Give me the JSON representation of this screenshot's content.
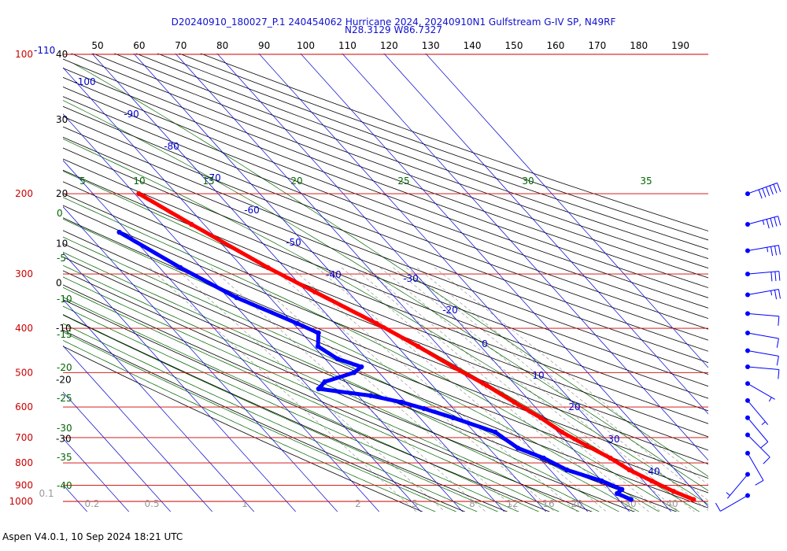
{
  "header": {
    "title_line1": "D20240910_180027_P.1 240454062 Hurricane 2024, 20240910N1 Gulfstream G-IV SP, N49RF",
    "title_line2": "N28.3129 W86.7327"
  },
  "footer": {
    "text": "Aspen V4.0.1, 10 Sep 2024  18:21 UTC"
  },
  "colors": {
    "temperature": "#ff0000",
    "dewpoint": "#0000ff",
    "isobar": "#cc0000",
    "isotherm": "#0000cc",
    "dry_adiabat": "#000000",
    "moist_adiabat": "#006600",
    "mixing_ratio": "#999999",
    "wind_barb": "#0000ff"
  },
  "chart_data": {
    "type": "skew-t",
    "pressure_axis": {
      "labels": [
        "100",
        "200",
        "300",
        "400",
        "500",
        "600",
        "700",
        "800",
        "900",
        "1000"
      ],
      "values": [
        100,
        200,
        300,
        400,
        500,
        600,
        700,
        800,
        900,
        1000
      ],
      "top_extra_label": "-110"
    },
    "isobar_pressures": [
      100,
      205,
      310,
      410,
      515,
      615,
      720,
      820,
      920,
      1000
    ],
    "altitude_labels": [
      {
        "label": "40",
        "p": 100
      },
      {
        "label": "30",
        "p": 140
      },
      {
        "label": "20",
        "p": 205
      },
      {
        "label": "10",
        "p": 265
      },
      {
        "label": "0",
        "p": 325
      },
      {
        "label": "-10",
        "p": 410
      },
      {
        "label": "-20",
        "p": 535
      },
      {
        "label": "-30",
        "p": 725
      }
    ],
    "top_scale_labels": [
      "50",
      "60",
      "70",
      "80",
      "90",
      "100",
      "110",
      "120",
      "130",
      "140",
      "150",
      "160",
      "170",
      "180",
      "190"
    ],
    "isotherm_labels": [
      {
        "label": "-100",
        "t": -100
      },
      {
        "label": "-90",
        "t": -90
      },
      {
        "label": "-80",
        "t": -80
      },
      {
        "label": "-70",
        "t": -70
      },
      {
        "label": "-60",
        "t": -60
      },
      {
        "label": "-50",
        "t": -50
      },
      {
        "label": "-40",
        "t": -40
      },
      {
        "label": "-30",
        "t": -30
      },
      {
        "label": "-20",
        "t": -20
      },
      {
        "label": "0",
        "t": 0
      },
      {
        "label": "10",
        "t": 10
      },
      {
        "label": "20",
        "t": 20
      },
      {
        "label": "30",
        "t": 30
      },
      {
        "label": "40",
        "t": 40
      }
    ],
    "moist_adiabat_labels": [
      "5",
      "10",
      "15",
      "20",
      "25",
      "30",
      "35"
    ],
    "theta_w_left_labels": [
      "0",
      "-5",
      "-10",
      "-15",
      "-20",
      "-25",
      "-30",
      "-35",
      "-40"
    ],
    "mixing_ratio_labels": [
      "0.1",
      "0.2",
      "0.5",
      "1",
      "2",
      "5",
      "8",
      "12",
      "16",
      "20",
      "30",
      "40"
    ],
    "temperature_profile": [
      {
        "p": 205,
        "t": -39
      },
      {
        "p": 240,
        "t": -33
      },
      {
        "p": 300,
        "t": -24
      },
      {
        "p": 340,
        "t": -18
      },
      {
        "p": 400,
        "t": -10
      },
      {
        "p": 450,
        "t": -5
      },
      {
        "p": 500,
        "t": -1
      },
      {
        "p": 550,
        "t": 3
      },
      {
        "p": 600,
        "t": 6
      },
      {
        "p": 650,
        "t": 9
      },
      {
        "p": 700,
        "t": 11
      },
      {
        "p": 750,
        "t": 14
      },
      {
        "p": 800,
        "t": 17
      },
      {
        "p": 850,
        "t": 19
      },
      {
        "p": 900,
        "t": 22
      },
      {
        "p": 950,
        "t": 25
      },
      {
        "p": 990,
        "t": 28
      }
    ],
    "dewpoint_profile": [
      {
        "p": 250,
        "t": -52
      },
      {
        "p": 300,
        "t": -45
      },
      {
        "p": 350,
        "t": -38
      },
      {
        "p": 400,
        "t": -29
      },
      {
        "p": 420,
        "t": -26
      },
      {
        "p": 450,
        "t": -29
      },
      {
        "p": 480,
        "t": -27
      },
      {
        "p": 500,
        "t": -23
      },
      {
        "p": 515,
        "t": -26
      },
      {
        "p": 540,
        "t": -35
      },
      {
        "p": 560,
        "t": -38
      },
      {
        "p": 580,
        "t": -27
      },
      {
        "p": 600,
        "t": -21
      },
      {
        "p": 620,
        "t": -17
      },
      {
        "p": 650,
        "t": -12
      },
      {
        "p": 700,
        "t": -5
      },
      {
        "p": 760,
        "t": -3
      },
      {
        "p": 800,
        "t": 1
      },
      {
        "p": 850,
        "t": 4
      },
      {
        "p": 900,
        "t": 10
      },
      {
        "p": 940,
        "t": 13
      },
      {
        "p": 960,
        "t": 11
      },
      {
        "p": 990,
        "t": 13
      }
    ],
    "wind_barbs": [
      {
        "p": 205,
        "speed_kt": 60,
        "dir": 250
      },
      {
        "p": 240,
        "speed_kt": 45,
        "dir": 255
      },
      {
        "p": 275,
        "speed_kt": 35,
        "dir": 260
      },
      {
        "p": 310,
        "speed_kt": 30,
        "dir": 265
      },
      {
        "p": 345,
        "speed_kt": 25,
        "dir": 260
      },
      {
        "p": 380,
        "speed_kt": 10,
        "dir": 275
      },
      {
        "p": 420,
        "speed_kt": 10,
        "dir": 280
      },
      {
        "p": 460,
        "speed_kt": 10,
        "dir": 280
      },
      {
        "p": 500,
        "speed_kt": 10,
        "dir": 275
      },
      {
        "p": 545,
        "speed_kt": 5,
        "dir": 300
      },
      {
        "p": 595,
        "speed_kt": 5,
        "dir": 320
      },
      {
        "p": 650,
        "speed_kt": 10,
        "dir": 320
      },
      {
        "p": 710,
        "speed_kt": 10,
        "dir": 315
      },
      {
        "p": 780,
        "speed_kt": 10,
        "dir": 330
      },
      {
        "p": 870,
        "speed_kt": 5,
        "dir": 40
      },
      {
        "p": 970,
        "speed_kt": 10,
        "dir": 60
      }
    ]
  }
}
